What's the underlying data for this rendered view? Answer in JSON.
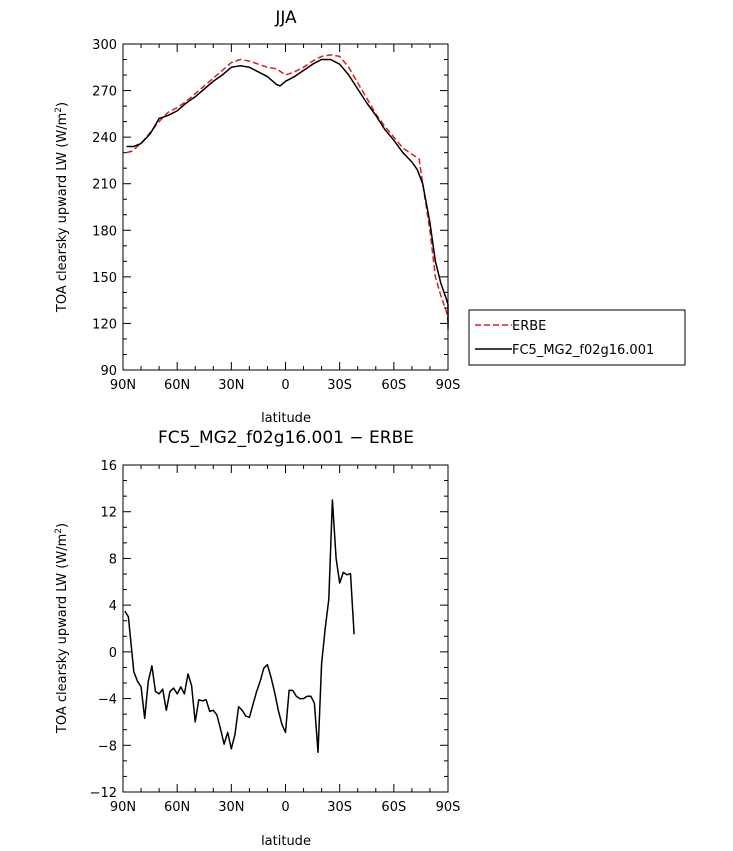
{
  "chart_data": [
    {
      "type": "line",
      "title": "JJA",
      "xlabel": "latitude",
      "ylabel": "TOA clearsky upward LW (W/m",
      "ylabel_sup": "2",
      "ylabel_close": ")",
      "xlim": [
        90,
        -90
      ],
      "ylim": [
        90,
        300
      ],
      "xticks": [
        90,
        60,
        30,
        0,
        -30,
        -60,
        -90
      ],
      "xtick_labels": [
        "90N",
        "60N",
        "30N",
        "0",
        "30S",
        "60S",
        "90S"
      ],
      "yticks": [
        90,
        120,
        150,
        180,
        210,
        240,
        270,
        300
      ],
      "ytick_labels": [
        "90",
        "120",
        "150",
        "180",
        "210",
        "240",
        "270",
        "300"
      ],
      "legend_position": "outside-right",
      "series": [
        {
          "name": "ERBE",
          "color": "#e41a1c",
          "dash": "dashed",
          "points": [
            [
              88,
              230
            ],
            [
              85,
              231
            ],
            [
              80,
              236
            ],
            [
              75,
              243
            ],
            [
              70,
              250
            ],
            [
              65,
              256
            ],
            [
              60,
              259
            ],
            [
              55,
              263
            ],
            [
              50,
              268
            ],
            [
              45,
              273
            ],
            [
              40,
              278
            ],
            [
              35,
              283
            ],
            [
              30,
              288
            ],
            [
              25,
              290
            ],
            [
              20,
              289
            ],
            [
              15,
              287
            ],
            [
              10,
              285
            ],
            [
              5,
              284
            ],
            [
              0,
              280
            ],
            [
              -5,
              282
            ],
            [
              -10,
              285
            ],
            [
              -15,
              289
            ],
            [
              -20,
              292
            ],
            [
              -25,
              293
            ],
            [
              -30,
              292
            ],
            [
              -35,
              285
            ],
            [
              -40,
              275
            ],
            [
              -45,
              265
            ],
            [
              -50,
              255
            ],
            [
              -55,
              247
            ],
            [
              -60,
              240
            ],
            [
              -65,
              233
            ],
            [
              -70,
              229
            ],
            [
              -74,
              226
            ],
            [
              -76,
              210
            ],
            [
              -80,
              180
            ],
            [
              -83,
              150
            ],
            [
              -86,
              138
            ],
            [
              -89,
              128
            ],
            [
              -92,
              122
            ],
            [
              -95,
              116
            ]
          ]
        },
        {
          "name": "FC5_MG2_f02g16.001",
          "color": "#000000",
          "dash": "solid",
          "points": [
            [
              88,
              234
            ],
            [
              84,
              234
            ],
            [
              80,
              236
            ],
            [
              75,
              242
            ],
            [
              70,
              252
            ],
            [
              65,
              254
            ],
            [
              60,
              257
            ],
            [
              55,
              262
            ],
            [
              50,
              266
            ],
            [
              45,
              271
            ],
            [
              40,
              276
            ],
            [
              35,
              280
            ],
            [
              30,
              285
            ],
            [
              25,
              286
            ],
            [
              20,
              285
            ],
            [
              15,
              282
            ],
            [
              10,
              279
            ],
            [
              5,
              274
            ],
            [
              3,
              273
            ],
            [
              0,
              276
            ],
            [
              -5,
              279
            ],
            [
              -10,
              283
            ],
            [
              -15,
              287
            ],
            [
              -20,
              290
            ],
            [
              -25,
              290
            ],
            [
              -30,
              287
            ],
            [
              -35,
              280
            ],
            [
              -40,
              271
            ],
            [
              -45,
              262
            ],
            [
              -50,
              254
            ],
            [
              -55,
              245
            ],
            [
              -60,
              238
            ],
            [
              -65,
              230
            ],
            [
              -70,
              224
            ],
            [
              -73,
              219
            ],
            [
              -76,
              210
            ],
            [
              -80,
              185
            ],
            [
              -83,
              160
            ],
            [
              -86,
              146
            ],
            [
              -89,
              136
            ],
            [
              -92,
              132
            ],
            [
              -95,
              118
            ]
          ]
        }
      ]
    },
    {
      "type": "line",
      "title": "FC5_MG2_f02g16.001 − ERBE",
      "xlabel": "latitude",
      "ylabel": "TOA clearsky upward LW (W/m",
      "ylabel_sup": "2",
      "ylabel_close": ")",
      "xlim": [
        90,
        -90
      ],
      "ylim": [
        -12,
        16
      ],
      "xticks": [
        90,
        60,
        30,
        0,
        -30,
        -60,
        -90
      ],
      "xtick_labels": [
        "90N",
        "60N",
        "30N",
        "0",
        "30S",
        "60S",
        "90S"
      ],
      "yticks": [
        -12,
        -8,
        -4,
        0,
        4,
        8,
        12,
        16
      ],
      "ytick_labels": [
        "−12",
        "−8",
        "−4",
        "0",
        "4",
        "8",
        "12",
        "16"
      ],
      "series": [
        {
          "color": "#000000",
          "dash": "solid",
          "points": [
            [
              89,
              3.5
            ],
            [
              87,
              3
            ],
            [
              84,
              -1.7
            ],
            [
              82,
              -2.5
            ],
            [
              80,
              -3
            ],
            [
              78,
              -5.7
            ],
            [
              76,
              -2.5
            ],
            [
              74,
              -1.2
            ],
            [
              72,
              -3.4
            ],
            [
              70,
              -3.6
            ],
            [
              68,
              -3.2
            ],
            [
              66,
              -5
            ],
            [
              64,
              -3.4
            ],
            [
              62,
              -3.1
            ],
            [
              60,
              -3.6
            ],
            [
              58,
              -3
            ],
            [
              56,
              -3.6
            ],
            [
              54,
              -1.9
            ],
            [
              52,
              -2.9
            ],
            [
              50,
              -6
            ],
            [
              48,
              -4.1
            ],
            [
              46,
              -4.2
            ],
            [
              44,
              -4.1
            ],
            [
              42,
              -5.1
            ],
            [
              40,
              -5
            ],
            [
              38,
              -5.4
            ],
            [
              36,
              -6.6
            ],
            [
              34,
              -7.9
            ],
            [
              32,
              -6.9
            ],
            [
              30,
              -8.3
            ],
            [
              28,
              -7.1
            ],
            [
              26,
              -4.7
            ],
            [
              24,
              -5
            ],
            [
              22,
              -5.5
            ],
            [
              20,
              -5.6
            ],
            [
              18,
              -4.5
            ],
            [
              16,
              -3.4
            ],
            [
              14,
              -2.5
            ],
            [
              12,
              -1.4
            ],
            [
              10,
              -1.1
            ],
            [
              8,
              -2.2
            ],
            [
              6,
              -3.5
            ],
            [
              4,
              -5
            ],
            [
              2,
              -6.2
            ],
            [
              0,
              -6.9
            ],
            [
              -2,
              -3.3
            ],
            [
              -4,
              -3.3
            ],
            [
              -6,
              -3.8
            ],
            [
              -8,
              -4
            ],
            [
              -10,
              -4
            ],
            [
              -12,
              -3.8
            ],
            [
              -14,
              -3.8
            ],
            [
              -16,
              -4.4
            ],
            [
              -18,
              -8.6
            ],
            [
              -20,
              -1
            ],
            [
              -22,
              2
            ],
            [
              -24,
              4.5
            ],
            [
              -26,
              13
            ],
            [
              -28,
              8
            ],
            [
              -30,
              5.9
            ],
            [
              -32,
              6.8
            ],
            [
              -34,
              6.6
            ],
            [
              -36,
              6.7
            ],
            [
              -38,
              1.5
            ]
          ]
        }
      ]
    }
  ]
}
